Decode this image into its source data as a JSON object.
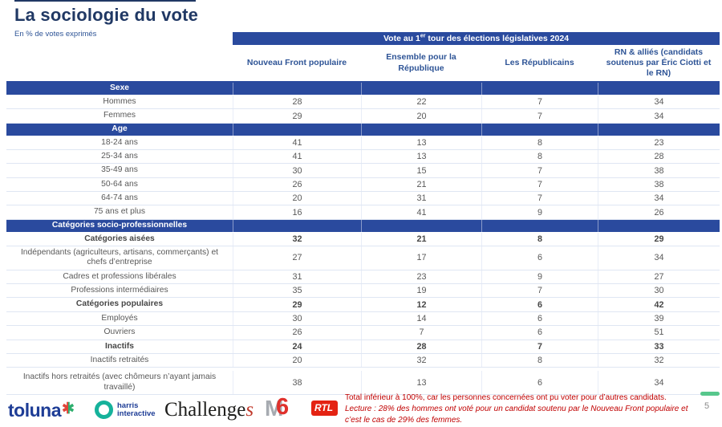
{
  "page": {
    "title": "La sociologie du vote",
    "subtitle": "En % de votes exprimés",
    "page_number": "5"
  },
  "colors": {
    "band_blue": "#2A4A9E",
    "title_navy": "#203864",
    "header_blue": "#2E5496",
    "text_grey": "#595959",
    "note_red": "#C00000",
    "accent_green": "#57C78C"
  },
  "table": {
    "banner": {
      "prefix": "Vote au 1",
      "superscript": "er",
      "suffix": " tour des élections législatives 2024"
    },
    "columns": [
      "Nouveau Front populaire",
      "Ensemble pour la République",
      "Les Républicains",
      "RN & alliés (candidats soutenus par Éric Ciotti et le RN)"
    ],
    "rows": [
      {
        "type": "section",
        "label": "Sexe"
      },
      {
        "type": "data",
        "label": "Hommes",
        "values": [
          28,
          22,
          7,
          34
        ]
      },
      {
        "type": "data",
        "label": "Femmes",
        "values": [
          29,
          20,
          7,
          34
        ]
      },
      {
        "type": "section",
        "label": "Age"
      },
      {
        "type": "data",
        "label": "18-24 ans",
        "values": [
          41,
          13,
          8,
          23
        ]
      },
      {
        "type": "data",
        "label": "25-34 ans",
        "values": [
          41,
          13,
          8,
          28
        ]
      },
      {
        "type": "data",
        "label": "35-49 ans",
        "values": [
          30,
          15,
          7,
          38
        ]
      },
      {
        "type": "data",
        "label": "50-64 ans",
        "values": [
          26,
          21,
          7,
          38
        ]
      },
      {
        "type": "data",
        "label": "64-74 ans",
        "values": [
          20,
          31,
          7,
          34
        ]
      },
      {
        "type": "data",
        "label": "75 ans et plus",
        "values": [
          16,
          41,
          9,
          26
        ]
      },
      {
        "type": "section",
        "label": "Catégories socio-professionnelles"
      },
      {
        "type": "data",
        "label": "Catégories aisées",
        "bold": true,
        "values": [
          32,
          21,
          8,
          29
        ]
      },
      {
        "type": "data",
        "label": "Indépendants (agriculteurs, artisans, commerçants) et chefs d’entreprise",
        "values": [
          27,
          17,
          6,
          34
        ]
      },
      {
        "type": "data",
        "label": "Cadres et professions libérales",
        "values": [
          31,
          23,
          9,
          27
        ]
      },
      {
        "type": "data",
        "label": "Professions intermédiaires",
        "values": [
          35,
          19,
          7,
          30
        ]
      },
      {
        "type": "data",
        "label": "Catégories populaires",
        "bold": true,
        "values": [
          29,
          12,
          6,
          42
        ]
      },
      {
        "type": "data",
        "label": "Employés",
        "values": [
          30,
          14,
          6,
          39
        ]
      },
      {
        "type": "data",
        "label": "Ouvriers",
        "values": [
          26,
          7,
          6,
          51
        ]
      },
      {
        "type": "data",
        "label": "Inactifs",
        "bold": true,
        "values": [
          24,
          28,
          7,
          33
        ]
      },
      {
        "type": "data",
        "label": "Inactifs retraités",
        "values": [
          20,
          32,
          8,
          32
        ]
      },
      {
        "type": "data",
        "label": "Inactifs hors retraités (avec chômeurs n’ayant jamais travaillé)",
        "last": true,
        "values": [
          38,
          13,
          6,
          34
        ]
      }
    ]
  },
  "footer": {
    "logos": {
      "toluna": "toluna",
      "toluna_star": "✱",
      "harris_line1": "harris",
      "harris_line2": "interactive",
      "challenges": "Challenge",
      "challenges_s": "s",
      "m6_m": "M",
      "m6_6": "6",
      "rtl": "RTL"
    },
    "note_line1": "Total inférieur à 100%, car les personnes concernées ont pu voter pour d’autres candidats.",
    "note_line2": "Lecture : 28% des hommes ont voté pour un candidat soutenu par le Nouveau Front populaire et c’est le cas de 29% des femmes."
  }
}
